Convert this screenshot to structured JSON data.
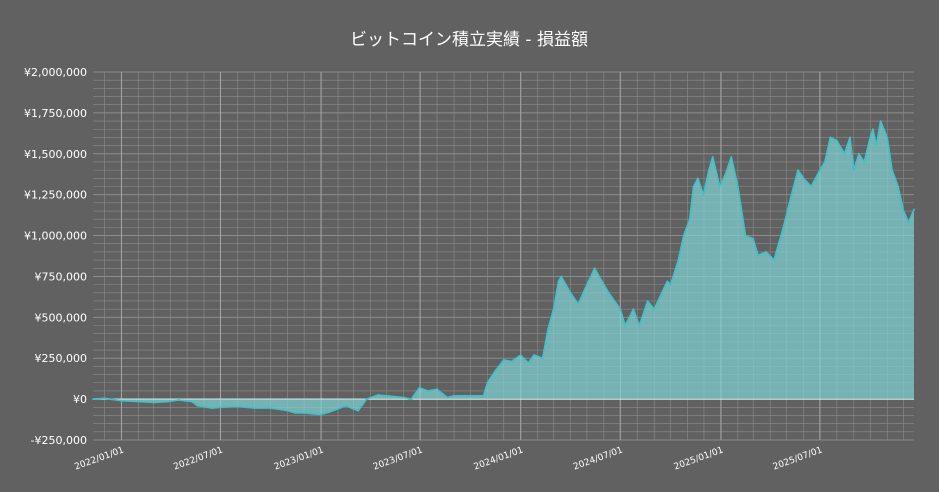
{
  "chart_data": {
    "type": "area",
    "title": "ビットコイン積立実績 - 損益額",
    "xlabel": "",
    "ylabel": "",
    "ylim": [
      -250000,
      2000000
    ],
    "xlim": [
      "2021-11-10",
      "2025-12-20"
    ],
    "y_ticks": [
      {
        "value": -250000,
        "label": "-¥250,000"
      },
      {
        "value": 0,
        "label": "¥0"
      },
      {
        "value": 250000,
        "label": "¥250,000"
      },
      {
        "value": 500000,
        "label": "¥500,000"
      },
      {
        "value": 750000,
        "label": "¥750,000"
      },
      {
        "value": 1000000,
        "label": "¥1,000,000"
      },
      {
        "value": 1250000,
        "label": "¥1,250,000"
      },
      {
        "value": 1500000,
        "label": "¥1,500,000"
      },
      {
        "value": 1750000,
        "label": "¥1,750,000"
      },
      {
        "value": 2000000,
        "label": "¥2,000,000"
      }
    ],
    "x_ticks": [
      {
        "value": "2022-01-01",
        "label": "2022/01/01"
      },
      {
        "value": "2022-07-01",
        "label": "2022/07/01"
      },
      {
        "value": "2023-01-01",
        "label": "2023/01/01"
      },
      {
        "value": "2023-07-01",
        "label": "2023/07/01"
      },
      {
        "value": "2024-01-01",
        "label": "2024/01/01"
      },
      {
        "value": "2024-07-01",
        "label": "2024/07/01"
      },
      {
        "value": "2025-01-01",
        "label": "2025/01/01"
      },
      {
        "value": "2025-07-01",
        "label": "2025/07/01"
      }
    ],
    "grid": true,
    "colors": {
      "background": "#616161",
      "line": "#3fc1c9",
      "fill": "#7fd3d6",
      "grid": "#8c8c8c",
      "zero_line": "#ffffff",
      "text": "#ffffff"
    },
    "series": [
      {
        "x": [
          "2021-11-10",
          "2021-12-01",
          "2022-01-01",
          "2022-02-01",
          "2022-03-01",
          "2022-03-28",
          "2022-04-15",
          "2022-05-10",
          "2022-05-20",
          "2022-06-15",
          "2022-07-01",
          "2022-08-01",
          "2022-09-01",
          "2022-10-01",
          "2022-11-01",
          "2022-11-15",
          "2022-12-01",
          "2022-12-30",
          "2023-01-15",
          "2023-02-01",
          "2023-02-15",
          "2023-03-01",
          "2023-03-10",
          "2023-03-25",
          "2023-04-15",
          "2023-05-01",
          "2023-06-01",
          "2023-06-15",
          "2023-06-30",
          "2023-07-15",
          "2023-08-01",
          "2023-08-20",
          "2023-09-01",
          "2023-10-01",
          "2023-10-25",
          "2023-11-01",
          "2023-11-15",
          "2023-12-01",
          "2023-12-15",
          "2024-01-01",
          "2024-01-15",
          "2024-01-25",
          "2024-02-10",
          "2024-02-20",
          "2024-03-01",
          "2024-03-10",
          "2024-03-15",
          "2024-04-01",
          "2024-04-15",
          "2024-05-01",
          "2024-05-15",
          "2024-06-01",
          "2024-06-10",
          "2024-07-01",
          "2024-07-10",
          "2024-07-25",
          "2024-08-05",
          "2024-08-20",
          "2024-09-01",
          "2024-09-15",
          "2024-09-25",
          "2024-10-01",
          "2024-10-15",
          "2024-10-25",
          "2024-11-05",
          "2024-11-12",
          "2024-11-20",
          "2024-11-30",
          "2024-12-10",
          "2024-12-17",
          "2024-12-30",
          "2025-01-10",
          "2025-01-20",
          "2025-02-01",
          "2025-02-15",
          "2025-03-01",
          "2025-03-10",
          "2025-03-25",
          "2025-04-08",
          "2025-04-25",
          "2025-05-10",
          "2025-05-22",
          "2025-06-01",
          "2025-06-15",
          "2025-07-01",
          "2025-07-10",
          "2025-07-20",
          "2025-08-01",
          "2025-08-15",
          "2025-08-25",
          "2025-09-01",
          "2025-09-10",
          "2025-09-20",
          "2025-10-01",
          "2025-10-06",
          "2025-10-12",
          "2025-10-20",
          "2025-11-01",
          "2025-11-10",
          "2025-11-21",
          "2025-12-01",
          "2025-12-10",
          "2025-12-20"
        ],
        "values": [
          0,
          5000,
          -10000,
          -15000,
          -20000,
          -15000,
          -5000,
          -15000,
          -40000,
          -55000,
          -50000,
          -45000,
          -55000,
          -55000,
          -70000,
          -85000,
          -85000,
          -95000,
          -80000,
          -60000,
          -40000,
          -60000,
          -70000,
          0,
          25000,
          20000,
          10000,
          0,
          70000,
          50000,
          60000,
          10000,
          20000,
          20000,
          20000,
          100000,
          170000,
          240000,
          230000,
          270000,
          220000,
          270000,
          250000,
          430000,
          550000,
          720000,
          750000,
          650000,
          580000,
          700000,
          800000,
          700000,
          650000,
          550000,
          450000,
          550000,
          450000,
          600000,
          550000,
          650000,
          720000,
          700000,
          850000,
          1000000,
          1100000,
          1300000,
          1350000,
          1250000,
          1400000,
          1480000,
          1300000,
          1380000,
          1480000,
          1300000,
          1000000,
          980000,
          880000,
          900000,
          850000,
          1050000,
          1250000,
          1400000,
          1350000,
          1300000,
          1400000,
          1450000,
          1600000,
          1580000,
          1500000,
          1600000,
          1400000,
          1500000,
          1450000,
          1600000,
          1650000,
          1550000,
          1700000,
          1600000,
          1400000,
          1300000,
          1150000,
          1080000,
          1160000
        ]
      }
    ]
  }
}
